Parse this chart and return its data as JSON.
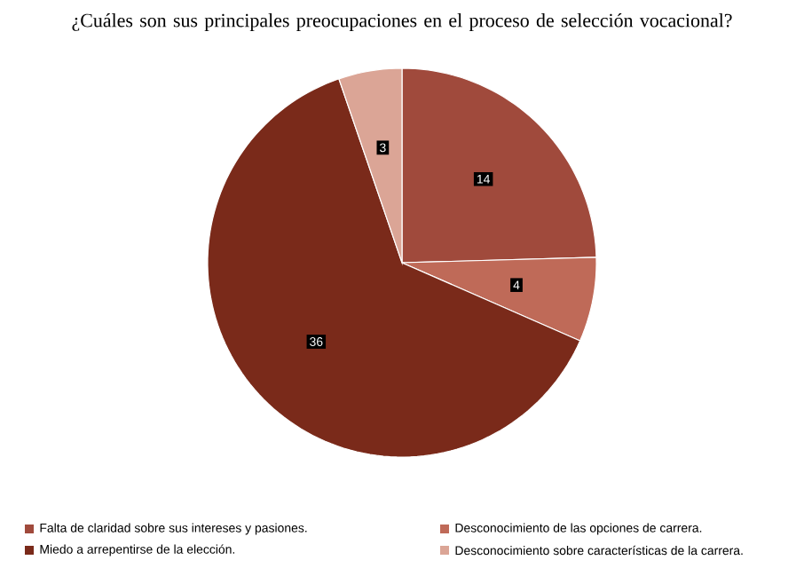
{
  "chart_data": {
    "type": "pie",
    "title": "¿Cuáles son sus principales preocupaciones en el proceso de selección vocacional?",
    "categories": [
      "Falta de claridad sobre sus intereses y pasiones.",
      "Desconocimiento de las opciones de carrera.",
      "Miedo a arrepentirse de la elección.",
      "Desconocimiento sobre características de la carrera."
    ],
    "values": [
      14,
      4,
      36,
      3
    ],
    "colors": [
      "#a04a3c",
      "#bf6a58",
      "#7a2a1a",
      "#dba596"
    ],
    "data_labels": true,
    "legend": "bottom"
  }
}
